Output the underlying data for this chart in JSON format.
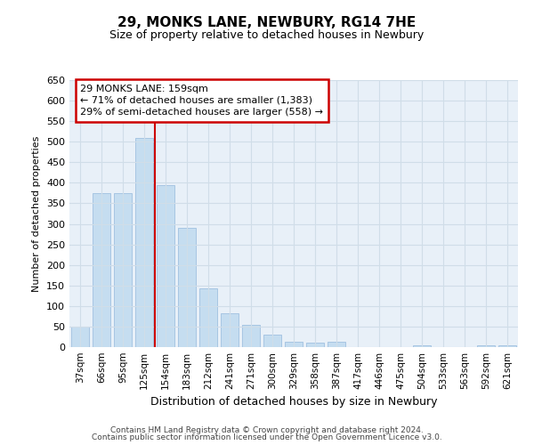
{
  "title_line1": "29, MONKS LANE, NEWBURY, RG14 7HE",
  "title_line2": "Size of property relative to detached houses in Newbury",
  "xlabel": "Distribution of detached houses by size in Newbury",
  "ylabel": "Number of detached properties",
  "footer_line1": "Contains HM Land Registry data © Crown copyright and database right 2024.",
  "footer_line2": "Contains public sector information licensed under the Open Government Licence v3.0.",
  "categories": [
    "37sqm",
    "66sqm",
    "95sqm",
    "125sqm",
    "154sqm",
    "183sqm",
    "212sqm",
    "241sqm",
    "271sqm",
    "300sqm",
    "329sqm",
    "358sqm",
    "387sqm",
    "417sqm",
    "446sqm",
    "475sqm",
    "504sqm",
    "533sqm",
    "563sqm",
    "592sqm",
    "621sqm"
  ],
  "values": [
    50,
    375,
    375,
    510,
    395,
    290,
    143,
    83,
    55,
    30,
    12,
    10,
    12,
    0,
    0,
    0,
    5,
    0,
    0,
    5,
    5
  ],
  "bar_color": "#c5ddf0",
  "bar_edge_color": "#a0c0e0",
  "grid_color": "#d0dde8",
  "plot_bg_color": "#e8f0f8",
  "fig_bg_color": "#ffffff",
  "red_line_index": 4,
  "annotation_text": "29 MONKS LANE: 159sqm\n← 71% of detached houses are smaller (1,383)\n29% of semi-detached houses are larger (558) →",
  "annotation_box_facecolor": "#ffffff",
  "annotation_box_edgecolor": "#cc0000",
  "ylim": [
    0,
    650
  ],
  "yticks": [
    0,
    50,
    100,
    150,
    200,
    250,
    300,
    350,
    400,
    450,
    500,
    550,
    600,
    650
  ],
  "title1_fontsize": 11,
  "title2_fontsize": 9,
  "xlabel_fontsize": 9,
  "ylabel_fontsize": 8,
  "tick_fontsize": 8,
  "xtick_fontsize": 7.5,
  "annot_fontsize": 8,
  "footer_fontsize": 6.5
}
